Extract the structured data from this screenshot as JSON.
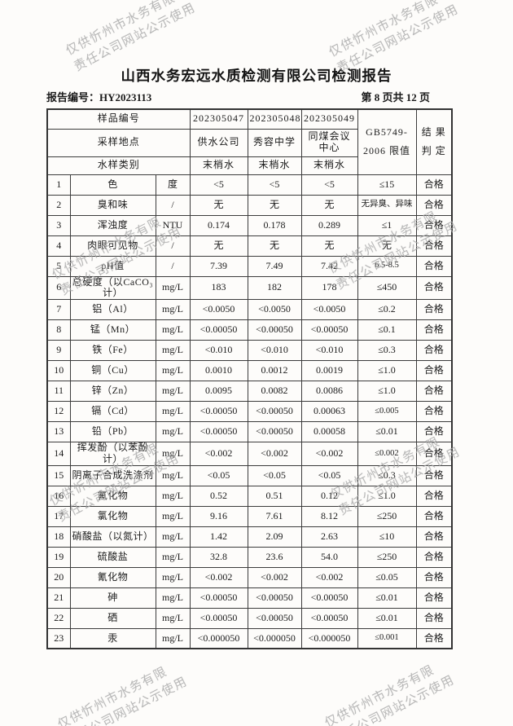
{
  "watermark": {
    "line1": "仅供忻州市水务有限",
    "line2": "责任公司网站公示使用"
  },
  "header": {
    "title": "山西水务宏远水质检测有限公司检测报告",
    "report_no": "报告编号：HY2023113",
    "page_info": "第 8 页共 12 页"
  },
  "table": {
    "head": {
      "row1_label": "样品编号",
      "sample_ids": [
        "202305047",
        "202305048",
        "202305049"
      ],
      "row2_label": "采样地点",
      "locations": [
        "供水公司",
        "秀容中学",
        "同煤会议中心"
      ],
      "row3_label": "水样类别",
      "sample_types": [
        "末梢水",
        "末梢水",
        "末梢水"
      ],
      "limit_header_line1": "GB5749-",
      "limit_header_line2": "2006 限值",
      "result_header_line1": "结 果",
      "result_header_line2": "判 定"
    },
    "rows": [
      {
        "no": "1",
        "item": "色",
        "unit": "度",
        "v1": "<5",
        "v2": "<5",
        "v3": "<5",
        "limit": "≤15",
        "result": "合格"
      },
      {
        "no": "2",
        "item": "臭和味",
        "unit": "/",
        "v1": "无",
        "v2": "无",
        "v3": "无",
        "limit": "无异臭、异味",
        "result": "合格"
      },
      {
        "no": "3",
        "item": "浑浊度",
        "unit": "NTU",
        "v1": "0.174",
        "v2": "0.178",
        "v3": "0.289",
        "limit": "≤1",
        "result": "合格"
      },
      {
        "no": "4",
        "item": "肉眼可见物",
        "unit": "/",
        "v1": "无",
        "v2": "无",
        "v3": "无",
        "limit": "无",
        "result": "合格"
      },
      {
        "no": "5",
        "item": "pH值",
        "unit": "/",
        "v1": "7.39",
        "v2": "7.49",
        "v3": "7.42",
        "limit": "6.5-8.5",
        "result": "合格"
      },
      {
        "no": "6",
        "item": "总硬度（以CaCO₃计）",
        "unit": "mg/L",
        "v1": "183",
        "v2": "182",
        "v3": "178",
        "limit": "≤450",
        "result": "合格"
      },
      {
        "no": "7",
        "item": "铝（Al）",
        "unit": "mg/L",
        "v1": "<0.0050",
        "v2": "<0.0050",
        "v3": "<0.0050",
        "limit": "≤0.2",
        "result": "合格"
      },
      {
        "no": "8",
        "item": "锰（Mn）",
        "unit": "mg/L",
        "v1": "<0.00050",
        "v2": "<0.00050",
        "v3": "<0.00050",
        "limit": "≤0.1",
        "result": "合格"
      },
      {
        "no": "9",
        "item": "铁（Fe）",
        "unit": "mg/L",
        "v1": "<0.010",
        "v2": "<0.010",
        "v3": "<0.010",
        "limit": "≤0.3",
        "result": "合格"
      },
      {
        "no": "10",
        "item": "铜（Cu）",
        "unit": "mg/L",
        "v1": "0.0010",
        "v2": "0.0012",
        "v3": "0.0019",
        "limit": "≤1.0",
        "result": "合格"
      },
      {
        "no": "11",
        "item": "锌（Zn）",
        "unit": "mg/L",
        "v1": "0.0095",
        "v2": "0.0082",
        "v3": "0.0086",
        "limit": "≤1.0",
        "result": "合格"
      },
      {
        "no": "12",
        "item": "镉（Cd）",
        "unit": "mg/L",
        "v1": "<0.00050",
        "v2": "<0.00050",
        "v3": "0.00063",
        "limit": "≤0.005",
        "result": "合格"
      },
      {
        "no": "13",
        "item": "铅（Pb）",
        "unit": "mg/L",
        "v1": "<0.00050",
        "v2": "<0.00050",
        "v3": "0.00058",
        "limit": "≤0.01",
        "result": "合格"
      },
      {
        "no": "14",
        "item": "挥发酚（以苯酚计）",
        "unit": "mg/L",
        "v1": "<0.002",
        "v2": "<0.002",
        "v3": "<0.002",
        "limit": "≤0.002",
        "result": "合格"
      },
      {
        "no": "15",
        "item": "阴离子合成洗涤剂",
        "unit": "mg/L",
        "v1": "<0.05",
        "v2": "<0.05",
        "v3": "<0.05",
        "limit": "≤0.3",
        "result": "合格"
      },
      {
        "no": "16",
        "item": "氟化物",
        "unit": "mg/L",
        "v1": "0.52",
        "v2": "0.51",
        "v3": "0.12",
        "limit": "≤1.0",
        "result": "合格"
      },
      {
        "no": "17",
        "item": "氯化物",
        "unit": "mg/L",
        "v1": "9.16",
        "v2": "7.61",
        "v3": "8.12",
        "limit": "≤250",
        "result": "合格"
      },
      {
        "no": "18",
        "item": "硝酸盐（以氮计）",
        "unit": "mg/L",
        "v1": "1.42",
        "v2": "2.09",
        "v3": "2.63",
        "limit": "≤10",
        "result": "合格"
      },
      {
        "no": "19",
        "item": "硫酸盐",
        "unit": "mg/L",
        "v1": "32.8",
        "v2": "23.6",
        "v3": "54.0",
        "limit": "≤250",
        "result": "合格"
      },
      {
        "no": "20",
        "item": "氰化物",
        "unit": "mg/L",
        "v1": "<0.002",
        "v2": "<0.002",
        "v3": "<0.002",
        "limit": "≤0.05",
        "result": "合格"
      },
      {
        "no": "21",
        "item": "砷",
        "unit": "mg/L",
        "v1": "<0.00050",
        "v2": "<0.00050",
        "v3": "<0.00050",
        "limit": "≤0.01",
        "result": "合格"
      },
      {
        "no": "22",
        "item": "硒",
        "unit": "mg/L",
        "v1": "<0.00050",
        "v2": "<0.00050",
        "v3": "<0.00050",
        "limit": "≤0.01",
        "result": "合格"
      },
      {
        "no": "23",
        "item": "汞",
        "unit": "mg/L",
        "v1": "<0.000050",
        "v2": "<0.000050",
        "v3": "<0.000050",
        "limit": "≤0.001",
        "result": "合格"
      }
    ]
  }
}
